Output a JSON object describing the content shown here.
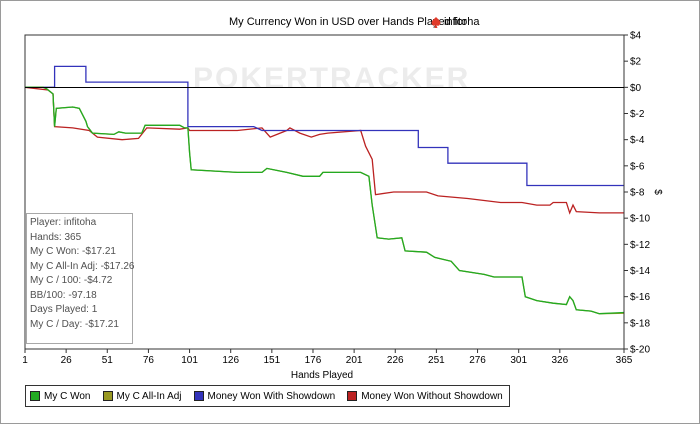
{
  "chart_data": {
    "type": "line",
    "title": "My Currency Won in USD over Hands Played for",
    "player_name": "infitoha",
    "watermark": "POKERTRACKER",
    "xlabel": "Hands Played",
    "ylabel": "$",
    "xlim": [
      1,
      365
    ],
    "ylim": [
      -20,
      4
    ],
    "x_ticks": [
      1,
      26,
      51,
      76,
      101,
      126,
      151,
      176,
      201,
      226,
      251,
      276,
      301,
      326,
      365
    ],
    "y_ticks": [
      4,
      2,
      0,
      -2,
      -4,
      -6,
      -8,
      -10,
      -12,
      -14,
      -16,
      -18,
      -20
    ],
    "y_tick_labels": [
      "$4",
      "$2",
      "$0",
      "$-2",
      "$-4",
      "$-6",
      "$-8",
      "$-10",
      "$-12",
      "$-14",
      "$-16",
      "$-18",
      "$-20"
    ],
    "grid": false,
    "legend_position": "bottom",
    "series": [
      {
        "name": "My C Won",
        "color": "#22aa22",
        "points": [
          [
            1,
            0
          ],
          [
            12,
            0
          ],
          [
            14,
            -0.1
          ],
          [
            18,
            -0.5
          ],
          [
            19,
            -3
          ],
          [
            20,
            -1.6
          ],
          [
            30,
            -1.5
          ],
          [
            34,
            -1.6
          ],
          [
            38,
            -2.6
          ],
          [
            39,
            -3
          ],
          [
            42,
            -3.5
          ],
          [
            55,
            -3.6
          ],
          [
            58,
            -3.4
          ],
          [
            62,
            -3.5
          ],
          [
            72,
            -3.5
          ],
          [
            74,
            -2.9
          ],
          [
            95,
            -2.9
          ],
          [
            98,
            -3.1
          ],
          [
            100,
            -3.1
          ],
          [
            101,
            -5
          ],
          [
            102,
            -6.3
          ],
          [
            130,
            -6.5
          ],
          [
            145,
            -6.5
          ],
          [
            148,
            -6.2
          ],
          [
            160,
            -6.5
          ],
          [
            170,
            -6.8
          ],
          [
            180,
            -6.8
          ],
          [
            182,
            -6.5
          ],
          [
            205,
            -6.5
          ],
          [
            210,
            -6.8
          ],
          [
            212,
            -9
          ],
          [
            215,
            -11.5
          ],
          [
            222,
            -11.6
          ],
          [
            230,
            -11.5
          ],
          [
            232,
            -12.5
          ],
          [
            245,
            -12.6
          ],
          [
            250,
            -13
          ],
          [
            260,
            -13.3
          ],
          [
            265,
            -14
          ],
          [
            280,
            -14.3
          ],
          [
            286,
            -14.5
          ],
          [
            303,
            -14.5
          ],
          [
            305,
            -16
          ],
          [
            312,
            -16.3
          ],
          [
            322,
            -16.5
          ],
          [
            330,
            -16.6
          ],
          [
            332,
            -16
          ],
          [
            334,
            -16.3
          ],
          [
            336,
            -17
          ],
          [
            345,
            -17.1
          ],
          [
            350,
            -17.3
          ],
          [
            365,
            -17.21
          ]
        ]
      },
      {
        "name": "My C All-In Adj",
        "color": "#999922",
        "points": [
          [
            1,
            0
          ],
          [
            12,
            0
          ],
          [
            14,
            -0.1
          ],
          [
            18,
            -0.5
          ],
          [
            19,
            -3
          ],
          [
            20,
            -1.6
          ],
          [
            30,
            -1.5
          ],
          [
            34,
            -1.6
          ],
          [
            38,
            -2.6
          ],
          [
            39,
            -3
          ],
          [
            42,
            -3.5
          ],
          [
            55,
            -3.6
          ],
          [
            58,
            -3.4
          ],
          [
            62,
            -3.5
          ],
          [
            72,
            -3.5
          ],
          [
            74,
            -2.9
          ],
          [
            95,
            -2.9
          ],
          [
            98,
            -3.1
          ],
          [
            100,
            -3.1
          ],
          [
            101,
            -5
          ],
          [
            102,
            -6.3
          ],
          [
            130,
            -6.5
          ],
          [
            145,
            -6.5
          ],
          [
            148,
            -6.2
          ],
          [
            160,
            -6.5
          ],
          [
            170,
            -6.8
          ],
          [
            180,
            -6.8
          ],
          [
            182,
            -6.5
          ],
          [
            205,
            -6.5
          ],
          [
            210,
            -6.8
          ],
          [
            212,
            -9
          ],
          [
            215,
            -11.5
          ],
          [
            222,
            -11.6
          ],
          [
            230,
            -11.5
          ],
          [
            232,
            -12.5
          ],
          [
            245,
            -12.6
          ],
          [
            250,
            -13
          ],
          [
            260,
            -13.3
          ],
          [
            265,
            -14
          ],
          [
            280,
            -14.3
          ],
          [
            286,
            -14.5
          ],
          [
            303,
            -14.5
          ],
          [
            305,
            -16
          ],
          [
            312,
            -16.3
          ],
          [
            322,
            -16.5
          ],
          [
            330,
            -16.6
          ],
          [
            332,
            -16
          ],
          [
            334,
            -16.3
          ],
          [
            336,
            -17
          ],
          [
            345,
            -17.1
          ],
          [
            350,
            -17.3
          ],
          [
            365,
            -17.26
          ]
        ]
      },
      {
        "name": "Money Won With Showdown",
        "color": "#3333bb",
        "points": [
          [
            1,
            0
          ],
          [
            19,
            0
          ],
          [
            19,
            1.6
          ],
          [
            38,
            1.6
          ],
          [
            38,
            0.4
          ],
          [
            100,
            0.4
          ],
          [
            100,
            -3
          ],
          [
            140,
            -3
          ],
          [
            145,
            -3.3
          ],
          [
            240,
            -3.3
          ],
          [
            240,
            -4.6
          ],
          [
            258,
            -4.6
          ],
          [
            258,
            -5.8
          ],
          [
            306,
            -5.8
          ],
          [
            306,
            -7.5
          ],
          [
            365,
            -7.5
          ]
        ]
      },
      {
        "name": "Money Won Without Showdown",
        "color": "#bb2222",
        "points": [
          [
            1,
            0
          ],
          [
            15,
            -0.2
          ],
          [
            18,
            -0.5
          ],
          [
            19,
            -3
          ],
          [
            30,
            -3.1
          ],
          [
            40,
            -3.3
          ],
          [
            45,
            -3.8
          ],
          [
            60,
            -4
          ],
          [
            70,
            -3.9
          ],
          [
            75,
            -3.1
          ],
          [
            95,
            -3.2
          ],
          [
            100,
            -3.1
          ],
          [
            101,
            -3.3
          ],
          [
            110,
            -3.3
          ],
          [
            130,
            -3.3
          ],
          [
            145,
            -3.1
          ],
          [
            150,
            -3.8
          ],
          [
            160,
            -3.3
          ],
          [
            162,
            -3.1
          ],
          [
            168,
            -3.5
          ],
          [
            175,
            -3.8
          ],
          [
            180,
            -3.6
          ],
          [
            185,
            -3.5
          ],
          [
            205,
            -3.3
          ],
          [
            208,
            -4.5
          ],
          [
            212,
            -5.5
          ],
          [
            214,
            -8.2
          ],
          [
            225,
            -8
          ],
          [
            245,
            -8
          ],
          [
            252,
            -8.3
          ],
          [
            270,
            -8.5
          ],
          [
            290,
            -8.8
          ],
          [
            303,
            -8.8
          ],
          [
            312,
            -9
          ],
          [
            320,
            -9
          ],
          [
            322,
            -8.8
          ],
          [
            330,
            -8.8
          ],
          [
            332,
            -9.6
          ],
          [
            334,
            -9
          ],
          [
            336,
            -9.5
          ],
          [
            350,
            -9.6
          ],
          [
            365,
            -9.6
          ]
        ]
      }
    ]
  },
  "stats": [
    "Player: infitoha",
    "Hands: 365",
    "My C Won: -$17.21",
    "My C All-In Adj: -$17.26",
    "My C / 100: -$4.72",
    "BB/100: -97.18",
    "Days Played: 1",
    "My C / Day: -$17.21"
  ],
  "legend": [
    {
      "label": "My C Won",
      "color": "#22aa22"
    },
    {
      "label": "My C All-In Adj",
      "color": "#999922"
    },
    {
      "label": "Money Won With Showdown",
      "color": "#3333bb"
    },
    {
      "label": "Money Won Without Showdown",
      "color": "#bb2222"
    }
  ]
}
